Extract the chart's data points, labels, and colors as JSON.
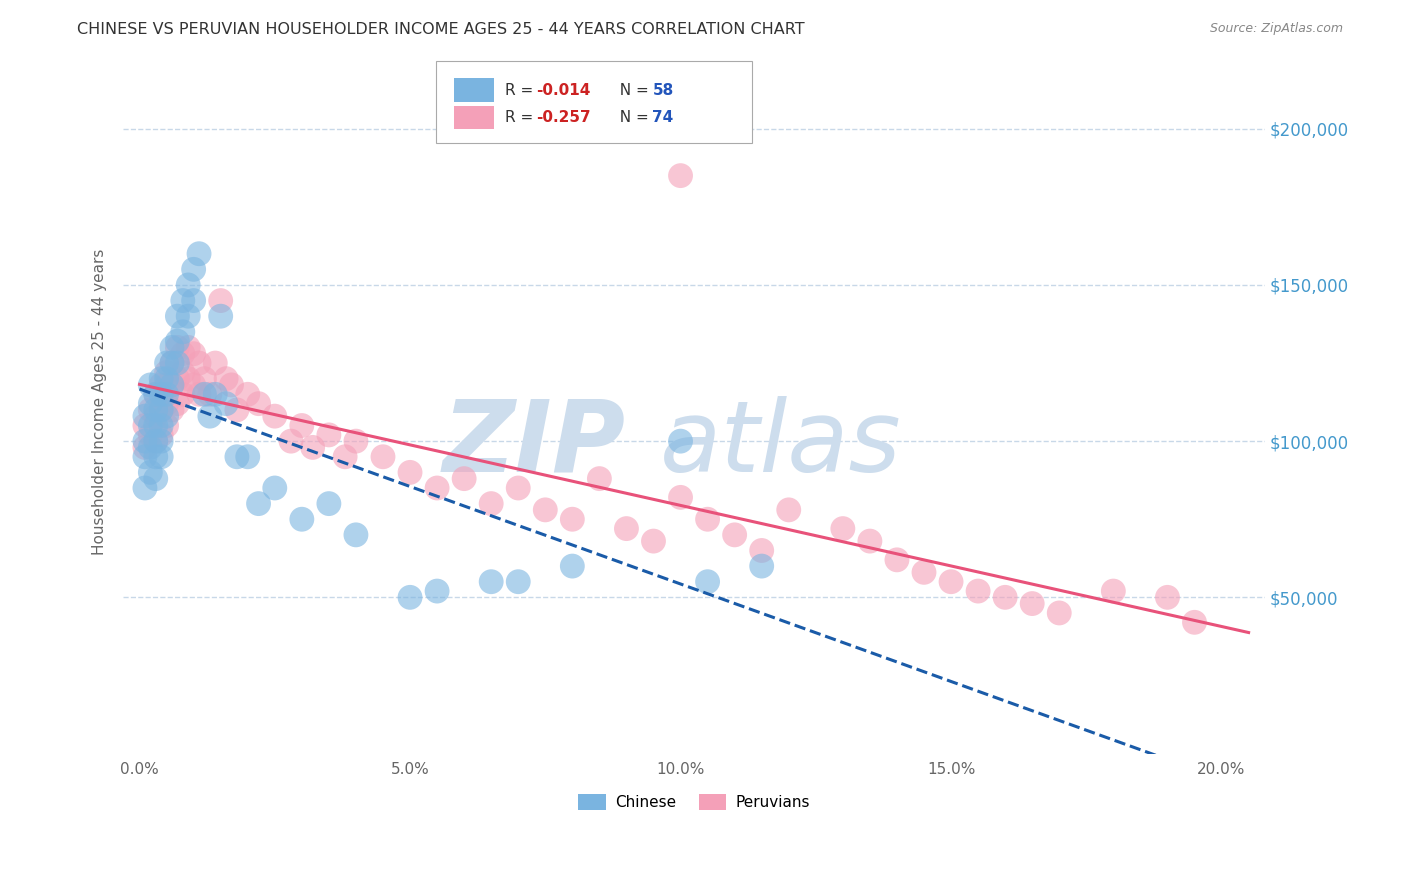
{
  "title": "CHINESE VS PERUVIAN HOUSEHOLDER INCOME AGES 25 - 44 YEARS CORRELATION CHART",
  "source": "Source: ZipAtlas.com",
  "ylabel": "Householder Income Ages 25 - 44 years",
  "xlabel_ticks": [
    "0.0%",
    "5.0%",
    "10.0%",
    "15.0%",
    "20.0%"
  ],
  "xlabel_values": [
    0.0,
    0.05,
    0.1,
    0.15,
    0.2
  ],
  "ytick_labels": [
    "$50,000",
    "$100,000",
    "$150,000",
    "$200,000"
  ],
  "ytick_values": [
    50000,
    100000,
    150000,
    200000
  ],
  "ylim": [
    0,
    225000
  ],
  "xlim": [
    -0.003,
    0.208
  ],
  "background_color": "#ffffff",
  "grid_color": "#c8d8e8",
  "title_color": "#333333",
  "source_color": "#888888",
  "axis_label_color": "#666666",
  "ytick_color": "#4499cc",
  "xtick_color": "#666666",
  "chinese_color": "#7ab4e0",
  "peruvian_color": "#f4a0b8",
  "chinese_line_color": "#1a5ba8",
  "peruvian_line_color": "#e8527a",
  "watermark_color": "#cddded",
  "chinese_x": [
    0.001,
    0.001,
    0.001,
    0.001,
    0.002,
    0.002,
    0.002,
    0.002,
    0.002,
    0.003,
    0.003,
    0.003,
    0.003,
    0.003,
    0.003,
    0.004,
    0.004,
    0.004,
    0.004,
    0.004,
    0.004,
    0.005,
    0.005,
    0.005,
    0.005,
    0.006,
    0.006,
    0.006,
    0.007,
    0.007,
    0.007,
    0.008,
    0.008,
    0.009,
    0.009,
    0.01,
    0.01,
    0.011,
    0.012,
    0.013,
    0.014,
    0.015,
    0.016,
    0.018,
    0.02,
    0.022,
    0.025,
    0.03,
    0.035,
    0.04,
    0.05,
    0.055,
    0.065,
    0.07,
    0.08,
    0.1,
    0.105,
    0.115
  ],
  "chinese_y": [
    100000,
    108000,
    95000,
    85000,
    118000,
    112000,
    105000,
    98000,
    90000,
    115000,
    110000,
    105000,
    100000,
    95000,
    88000,
    120000,
    115000,
    110000,
    105000,
    100000,
    95000,
    125000,
    120000,
    115000,
    108000,
    130000,
    125000,
    118000,
    140000,
    132000,
    125000,
    145000,
    135000,
    150000,
    140000,
    155000,
    145000,
    160000,
    115000,
    108000,
    115000,
    140000,
    112000,
    95000,
    95000,
    80000,
    85000,
    75000,
    80000,
    70000,
    50000,
    52000,
    55000,
    55000,
    60000,
    100000,
    55000,
    60000
  ],
  "peruvian_x": [
    0.001,
    0.001,
    0.002,
    0.002,
    0.003,
    0.003,
    0.003,
    0.004,
    0.004,
    0.004,
    0.005,
    0.005,
    0.005,
    0.005,
    0.006,
    0.006,
    0.006,
    0.007,
    0.007,
    0.007,
    0.008,
    0.008,
    0.008,
    0.009,
    0.009,
    0.01,
    0.01,
    0.011,
    0.011,
    0.012,
    0.013,
    0.014,
    0.015,
    0.016,
    0.017,
    0.018,
    0.02,
    0.022,
    0.025,
    0.028,
    0.03,
    0.032,
    0.035,
    0.038,
    0.04,
    0.045,
    0.05,
    0.055,
    0.06,
    0.065,
    0.07,
    0.075,
    0.08,
    0.085,
    0.09,
    0.095,
    0.1,
    0.105,
    0.11,
    0.115,
    0.12,
    0.13,
    0.135,
    0.14,
    0.145,
    0.15,
    0.155,
    0.16,
    0.165,
    0.17,
    0.18,
    0.19,
    0.195,
    0.1
  ],
  "peruvian_y": [
    105000,
    98000,
    110000,
    102000,
    115000,
    108000,
    100000,
    118000,
    110000,
    102000,
    122000,
    118000,
    112000,
    105000,
    125000,
    118000,
    110000,
    130000,
    120000,
    112000,
    128000,
    122000,
    115000,
    130000,
    120000,
    128000,
    118000,
    125000,
    115000,
    120000,
    115000,
    125000,
    145000,
    120000,
    118000,
    110000,
    115000,
    112000,
    108000,
    100000,
    105000,
    98000,
    102000,
    95000,
    100000,
    95000,
    90000,
    85000,
    88000,
    80000,
    85000,
    78000,
    75000,
    88000,
    72000,
    68000,
    82000,
    75000,
    70000,
    65000,
    78000,
    72000,
    68000,
    62000,
    58000,
    55000,
    52000,
    50000,
    48000,
    45000,
    52000,
    50000,
    42000,
    185000
  ]
}
